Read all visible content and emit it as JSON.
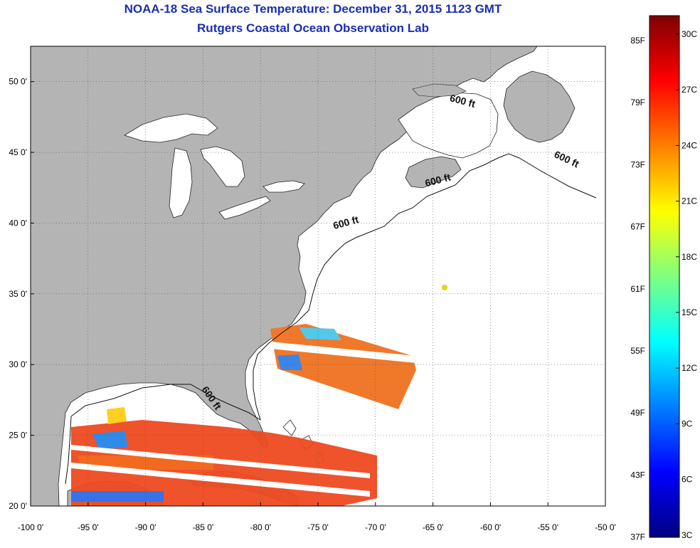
{
  "title": "NOAA-18 Sea Surface Temperature:  December 31, 2015 1123 GMT",
  "subtitle": "Rutgers Coastal Ocean Observation Lab",
  "map": {
    "lon_range": [
      -100,
      -50
    ],
    "lat_range": [
      20,
      52.5
    ],
    "lon_ticks": [
      {
        "value": -100,
        "label": "-100 0'"
      },
      {
        "value": -95,
        "label": "-95 0'"
      },
      {
        "value": -90,
        "label": "-90 0'"
      },
      {
        "value": -85,
        "label": "-85 0'"
      },
      {
        "value": -80,
        "label": "-80 0'"
      },
      {
        "value": -75,
        "label": "-75 0'"
      },
      {
        "value": -70,
        "label": "-70 0'"
      },
      {
        "value": -65,
        "label": "-65 0'"
      },
      {
        "value": -60,
        "label": "-60 0'"
      },
      {
        "value": -55,
        "label": "-55 0'"
      },
      {
        "value": -50,
        "label": "-50 0'"
      }
    ],
    "lat_ticks": [
      {
        "value": 50,
        "label": "50 0'"
      },
      {
        "value": 45,
        "label": "45 0'"
      },
      {
        "value": 40,
        "label": "40 0'"
      },
      {
        "value": 35,
        "label": "35 0'"
      },
      {
        "value": 30,
        "label": "30 0'"
      },
      {
        "value": 25,
        "label": "25 0'"
      },
      {
        "value": 20,
        "label": "20 0'"
      }
    ],
    "contour_labels": [
      {
        "text": "600 ft",
        "lon": -62.5,
        "lat": 48.4,
        "angle": 15
      },
      {
        "text": "600 ft",
        "lon": -53.5,
        "lat": 44.3,
        "angle": 25
      },
      {
        "text": "600 ft",
        "lon": -64.5,
        "lat": 42.8,
        "angle": -15
      },
      {
        "text": "600 ft",
        "lon": -72.5,
        "lat": 39.8,
        "angle": -15
      },
      {
        "text": "600 ft",
        "lon": -84.5,
        "lat": 27.5,
        "angle": 55
      }
    ],
    "land_color": "#b4b4b4"
  },
  "colorbar": {
    "f_labels": [
      "85F",
      "79F",
      "73F",
      "67F",
      "61F",
      "55F",
      "49F",
      "43F",
      "37F"
    ],
    "c_labels": [
      "30C",
      "27C",
      "24C",
      "21C",
      "18C",
      "15C",
      "12C",
      "9C",
      "6C",
      "3C"
    ],
    "colors": [
      "#00007f",
      "#0000ff",
      "#007fff",
      "#00ffff",
      "#7fff7f",
      "#ffff00",
      "#ff7f00",
      "#ff0000",
      "#7f0000"
    ]
  }
}
